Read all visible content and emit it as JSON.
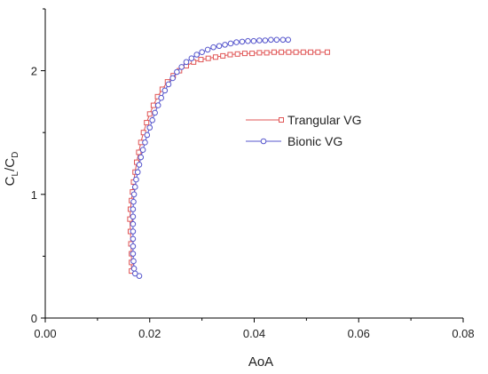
{
  "chart_data": {
    "type": "scatter",
    "xlabel": "AoA",
    "ylabel": "C_L/C_D",
    "xlim": [
      0,
      0.08
    ],
    "ylim": [
      0,
      2.5
    ],
    "xticks": [
      "0.00",
      "0.02",
      "0.04",
      "0.06",
      "0.08"
    ],
    "yticks": [
      "0",
      "1",
      "2"
    ],
    "grid": false,
    "legend_position": "center-right",
    "series": [
      {
        "name": "Trangular VG",
        "color": "#e05555",
        "marker": "square",
        "points": [
          [
            0.0165,
            0.38
          ],
          [
            0.0165,
            0.45
          ],
          [
            0.0165,
            0.52
          ],
          [
            0.0164,
            0.6
          ],
          [
            0.0163,
            0.7
          ],
          [
            0.0162,
            0.8
          ],
          [
            0.0163,
            0.88
          ],
          [
            0.0165,
            0.95
          ],
          [
            0.0167,
            1.02
          ],
          [
            0.0169,
            1.1
          ],
          [
            0.0172,
            1.18
          ],
          [
            0.0175,
            1.26
          ],
          [
            0.0179,
            1.34
          ],
          [
            0.0183,
            1.42
          ],
          [
            0.0188,
            1.5
          ],
          [
            0.0194,
            1.58
          ],
          [
            0.02,
            1.65
          ],
          [
            0.0207,
            1.72
          ],
          [
            0.0215,
            1.79
          ],
          [
            0.0224,
            1.85
          ],
          [
            0.0234,
            1.91
          ],
          [
            0.0245,
            1.96
          ],
          [
            0.0257,
            2.0
          ],
          [
            0.027,
            2.04
          ],
          [
            0.0284,
            2.07
          ],
          [
            0.0298,
            2.09
          ],
          [
            0.0312,
            2.1
          ],
          [
            0.0326,
            2.11
          ],
          [
            0.034,
            2.12
          ],
          [
            0.0354,
            2.13
          ],
          [
            0.0368,
            2.135
          ],
          [
            0.0382,
            2.14
          ],
          [
            0.0396,
            2.14
          ],
          [
            0.041,
            2.145
          ],
          [
            0.0424,
            2.145
          ],
          [
            0.0438,
            2.15
          ],
          [
            0.0452,
            2.15
          ],
          [
            0.0466,
            2.15
          ],
          [
            0.048,
            2.15
          ],
          [
            0.0494,
            2.15
          ],
          [
            0.0508,
            2.15
          ],
          [
            0.0522,
            2.15
          ],
          [
            0.054,
            2.15
          ]
        ]
      },
      {
        "name": "Bionic VG",
        "color": "#5555cc",
        "marker": "circle",
        "points": [
          [
            0.018,
            0.34
          ],
          [
            0.0172,
            0.36
          ],
          [
            0.017,
            0.4
          ],
          [
            0.0169,
            0.46
          ],
          [
            0.0168,
            0.52
          ],
          [
            0.0168,
            0.58
          ],
          [
            0.0168,
            0.64
          ],
          [
            0.0168,
            0.7
          ],
          [
            0.0168,
            0.76
          ],
          [
            0.0168,
            0.82
          ],
          [
            0.0168,
            0.88
          ],
          [
            0.0169,
            0.94
          ],
          [
            0.017,
            1.0
          ],
          [
            0.0172,
            1.06
          ],
          [
            0.0174,
            1.12
          ],
          [
            0.0177,
            1.18
          ],
          [
            0.018,
            1.24
          ],
          [
            0.0183,
            1.3
          ],
          [
            0.0187,
            1.36
          ],
          [
            0.0191,
            1.42
          ],
          [
            0.0195,
            1.48
          ],
          [
            0.02,
            1.54
          ],
          [
            0.0205,
            1.6
          ],
          [
            0.021,
            1.66
          ],
          [
            0.0216,
            1.72
          ],
          [
            0.0222,
            1.78
          ],
          [
            0.0229,
            1.84
          ],
          [
            0.0236,
            1.89
          ],
          [
            0.0244,
            1.94
          ],
          [
            0.0252,
            1.99
          ],
          [
            0.0261,
            2.03
          ],
          [
            0.027,
            2.07
          ],
          [
            0.028,
            2.1
          ],
          [
            0.029,
            2.13
          ],
          [
            0.03,
            2.15
          ],
          [
            0.0311,
            2.17
          ],
          [
            0.0322,
            2.19
          ],
          [
            0.0333,
            2.2
          ],
          [
            0.0344,
            2.21
          ],
          [
            0.0355,
            2.22
          ],
          [
            0.0366,
            2.23
          ],
          [
            0.0377,
            2.235
          ],
          [
            0.0388,
            2.24
          ],
          [
            0.0399,
            2.24
          ],
          [
            0.041,
            2.245
          ],
          [
            0.0421,
            2.245
          ],
          [
            0.0432,
            2.25
          ],
          [
            0.0443,
            2.25
          ],
          [
            0.0455,
            2.25
          ],
          [
            0.0465,
            2.25
          ]
        ]
      }
    ]
  }
}
